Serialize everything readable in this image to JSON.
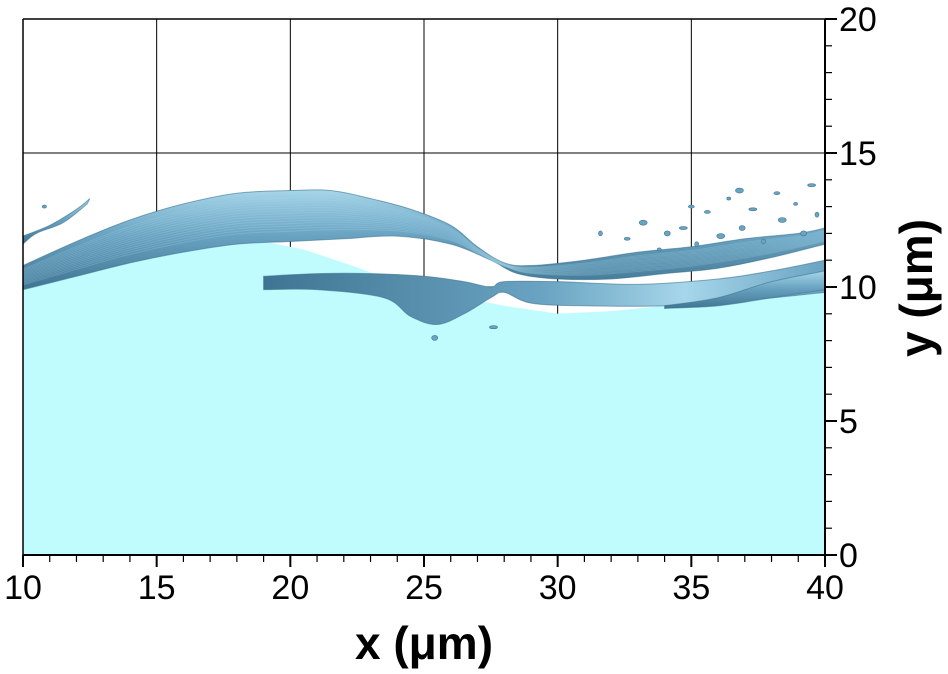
{
  "chart_data": {
    "type": "area",
    "xlabel": "x (μm)",
    "ylabel": "y (μm)",
    "xlim": [
      10,
      40
    ],
    "ylim": [
      0,
      20
    ],
    "x_ticks": [
      10,
      15,
      20,
      25,
      30,
      35,
      40
    ],
    "y_ticks": [
      0,
      5,
      10,
      15,
      20
    ],
    "x_minor_step": 1,
    "y_minor_step": 1,
    "grid": true,
    "y_axis_side": "right",
    "colors": {
      "liquid": "#c0fbfd",
      "surface": "#6aa4c2",
      "surface_light": "#a6d6ea",
      "surface_dark": "#3f7592"
    },
    "series": [
      {
        "role": "liquid-base",
        "x": [
          10,
          12,
          14,
          16,
          17.5,
          19,
          20.5,
          22,
          24,
          26,
          28,
          30,
          32,
          34,
          36,
          38,
          40
        ],
        "y": [
          10,
          10.6,
          11.2,
          11.6,
          11.8,
          11.7,
          11.4,
          10.9,
          10.2,
          9.7,
          9.3,
          9.0,
          9.1,
          9.3,
          9.3,
          9.6,
          10.0
        ]
      }
    ],
    "surface_bands": [
      {
        "role": "upper-wave-crest",
        "upper": {
          "x": [
            10,
            12,
            14,
            16,
            18,
            20,
            21.5,
            23,
            24.5,
            26,
            27,
            28,
            29,
            31,
            33,
            35,
            37,
            39,
            40
          ],
          "y": [
            10.8,
            11.7,
            12.5,
            13.1,
            13.5,
            13.6,
            13.6,
            13.3,
            12.9,
            12.3,
            11.5,
            10.9,
            10.8,
            11.0,
            11.3,
            11.5,
            11.8,
            12.0,
            12.2
          ]
        },
        "lower": {
          "x": [
            40,
            38,
            36,
            34,
            32,
            30,
            28.5,
            27.5,
            26,
            24,
            22,
            20,
            18,
            16,
            14,
            12,
            10
          ],
          "y": [
            11.6,
            11.1,
            10.7,
            10.5,
            10.3,
            10.3,
            10.5,
            11.0,
            11.6,
            11.9,
            11.8,
            11.7,
            11.6,
            11.3,
            10.9,
            10.4,
            9.9
          ]
        }
      },
      {
        "role": "ligament-sheet",
        "upper": {
          "x": [
            19,
            21,
            23,
            25,
            26.5,
            27.5,
            28,
            30,
            33,
            36,
            38,
            40
          ],
          "y": [
            10.4,
            10.5,
            10.5,
            10.4,
            10.2,
            10.0,
            10.2,
            10.2,
            10.1,
            10.3,
            10.6,
            11.0
          ]
        },
        "lower": {
          "x": [
            40,
            37,
            34,
            31,
            29,
            28,
            27.5,
            26.5,
            25.5,
            24.5,
            23.5,
            21,
            19
          ],
          "y": [
            9.8,
            9.5,
            9.3,
            9.3,
            9.4,
            9.8,
            9.6,
            9.0,
            8.6,
            8.9,
            9.6,
            9.9,
            9.9
          ]
        }
      },
      {
        "role": "right-rising-wave",
        "upper": {
          "x": [
            34,
            36,
            38,
            40
          ],
          "y": [
            9.3,
            9.6,
            10.2,
            10.6
          ]
        },
        "lower": {
          "x": [
            40,
            38,
            36,
            34
          ],
          "y": [
            9.9,
            9.6,
            9.3,
            9.2
          ]
        }
      },
      {
        "role": "left-thin-filament",
        "upper": {
          "x": [
            10,
            11,
            12,
            12.5
          ],
          "y": [
            11.9,
            12.3,
            12.9,
            13.3
          ]
        },
        "lower": {
          "x": [
            12.4,
            11.5,
            10.5,
            10
          ],
          "y": [
            13.1,
            12.4,
            12.0,
            11.6
          ]
        }
      }
    ],
    "droplets": [
      {
        "x": 10.8,
        "y": 13.0
      },
      {
        "x": 25.4,
        "y": 8.1
      },
      {
        "x": 27.6,
        "y": 8.5
      },
      {
        "x": 31.6,
        "y": 12.0
      },
      {
        "x": 32.6,
        "y": 11.8
      },
      {
        "x": 33.2,
        "y": 12.4
      },
      {
        "x": 33.8,
        "y": 11.4
      },
      {
        "x": 34.1,
        "y": 12.0
      },
      {
        "x": 34.7,
        "y": 12.2
      },
      {
        "x": 35.2,
        "y": 11.6
      },
      {
        "x": 35.6,
        "y": 12.8
      },
      {
        "x": 36.1,
        "y": 11.9
      },
      {
        "x": 36.4,
        "y": 13.3
      },
      {
        "x": 36.9,
        "y": 12.2
      },
      {
        "x": 37.3,
        "y": 12.9
      },
      {
        "x": 37.7,
        "y": 11.7
      },
      {
        "x": 38.2,
        "y": 13.5
      },
      {
        "x": 38.4,
        "y": 12.5
      },
      {
        "x": 38.9,
        "y": 13.1
      },
      {
        "x": 39.2,
        "y": 12.0
      },
      {
        "x": 39.5,
        "y": 13.8
      },
      {
        "x": 39.7,
        "y": 12.7
      },
      {
        "x": 35.0,
        "y": 13.0
      },
      {
        "x": 36.8,
        "y": 13.6
      }
    ]
  }
}
